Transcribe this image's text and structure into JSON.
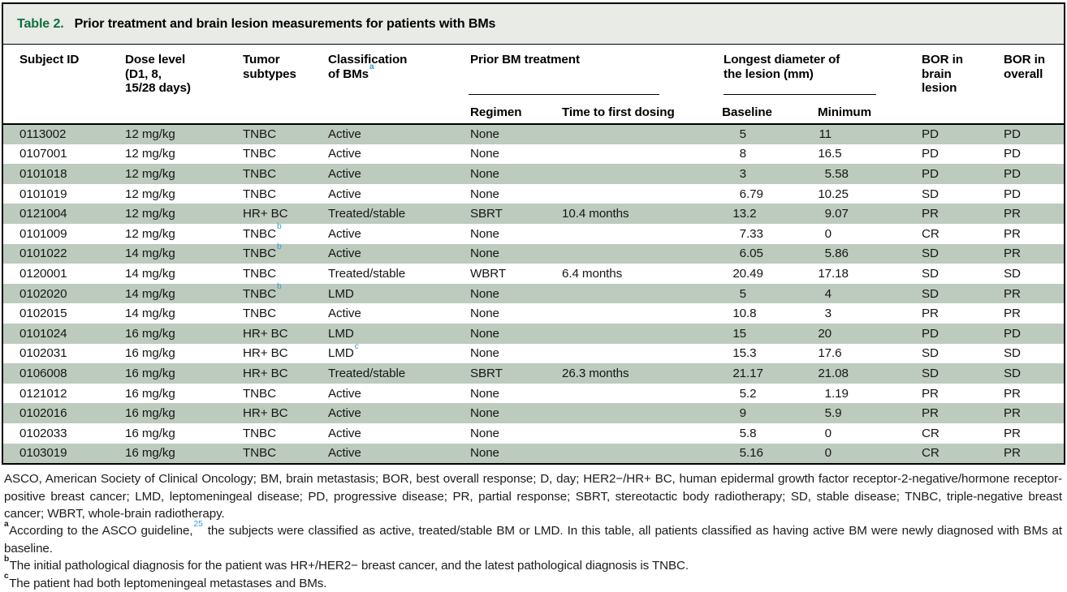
{
  "title": {
    "label": "Table 2.",
    "text": "Prior treatment and brain lesion measurements for patients with BMs"
  },
  "colors": {
    "accent_green": "#106f3e",
    "row_band_green": "#bdcabe",
    "title_bar_bg": "#e8ebe6",
    "superscript_blue": "#2e9fd6"
  },
  "header": {
    "subject_id": "Subject ID",
    "dose_level": "Dose level\n(D1, 8,\n15/28 days)",
    "tumor_subtypes": "Tumor\nsubtypes",
    "classification": "Classification\nof BMs",
    "classification_sup": "a",
    "prior_treatment_group": "Prior BM treatment",
    "regimen": "Regimen",
    "time_to_first_dosing": "Time to first dosing",
    "diameter_group": "Longest diameter of\nthe lesion (mm)",
    "baseline": "Baseline",
    "minimum": "Minimum",
    "bor_brain": "BOR in\nbrain\nlesion",
    "bor_overall": "BOR in\noverall"
  },
  "rows": [
    {
      "subject_id": "0113002",
      "dose": "12 mg/kg",
      "tumor": "TNBC",
      "tumor_sup": "",
      "classification": "Active",
      "classification_sup": "",
      "regimen": "None",
      "time_to_first_dosing": "",
      "baseline": "5",
      "minimum": "11",
      "bor_brain": "PD",
      "bor_overall": "PD"
    },
    {
      "subject_id": "0107001",
      "dose": "12 mg/kg",
      "tumor": "TNBC",
      "tumor_sup": "",
      "classification": "Active",
      "classification_sup": "",
      "regimen": "None",
      "time_to_first_dosing": "",
      "baseline": "8",
      "minimum": "16.5",
      "bor_brain": "PD",
      "bor_overall": "PD"
    },
    {
      "subject_id": "0101018",
      "dose": "12 mg/kg",
      "tumor": "TNBC",
      "tumor_sup": "",
      "classification": "Active",
      "classification_sup": "",
      "regimen": "None",
      "time_to_first_dosing": "",
      "baseline": "3",
      "minimum": "5.58",
      "bor_brain": "PD",
      "bor_overall": "PD"
    },
    {
      "subject_id": "0101019",
      "dose": "12 mg/kg",
      "tumor": "TNBC",
      "tumor_sup": "",
      "classification": "Active",
      "classification_sup": "",
      "regimen": "None",
      "time_to_first_dosing": "",
      "baseline": "6.79",
      "minimum": "10.25",
      "bor_brain": "SD",
      "bor_overall": "PD"
    },
    {
      "subject_id": "0121004",
      "dose": "12 mg/kg",
      "tumor": "HR+ BC",
      "tumor_sup": "",
      "classification": "Treated/stable",
      "classification_sup": "",
      "regimen": "SBRT",
      "time_to_first_dosing": "10.4 months",
      "baseline": "13.2",
      "minimum": "9.07",
      "bor_brain": "PR",
      "bor_overall": "PR"
    },
    {
      "subject_id": "0101009",
      "dose": "12 mg/kg",
      "tumor": "TNBC",
      "tumor_sup": "b",
      "classification": "Active",
      "classification_sup": "",
      "regimen": "None",
      "time_to_first_dosing": "",
      "baseline": "7.33",
      "minimum": "0",
      "bor_brain": "CR",
      "bor_overall": "PR"
    },
    {
      "subject_id": "0101022",
      "dose": "14 mg/kg",
      "tumor": "TNBC",
      "tumor_sup": "b",
      "classification": "Active",
      "classification_sup": "",
      "regimen": "None",
      "time_to_first_dosing": "",
      "baseline": "6.05",
      "minimum": "5.86",
      "bor_brain": "SD",
      "bor_overall": "PR"
    },
    {
      "subject_id": "0120001",
      "dose": "14 mg/kg",
      "tumor": "TNBC",
      "tumor_sup": "",
      "classification": "Treated/stable",
      "classification_sup": "",
      "regimen": "WBRT",
      "time_to_first_dosing": "6.4 months",
      "baseline": "20.49",
      "minimum": "17.18",
      "bor_brain": "SD",
      "bor_overall": "SD"
    },
    {
      "subject_id": "0102020",
      "dose": "14 mg/kg",
      "tumor": "TNBC",
      "tumor_sup": "b",
      "classification": "LMD",
      "classification_sup": "",
      "regimen": "None",
      "time_to_first_dosing": "",
      "baseline": "5",
      "minimum": "4",
      "bor_brain": "SD",
      "bor_overall": "PR"
    },
    {
      "subject_id": "0102015",
      "dose": "14 mg/kg",
      "tumor": "TNBC",
      "tumor_sup": "",
      "classification": "Active",
      "classification_sup": "",
      "regimen": "None",
      "time_to_first_dosing": "",
      "baseline": "10.8",
      "minimum": "3",
      "bor_brain": "PR",
      "bor_overall": "PR"
    },
    {
      "subject_id": "0101024",
      "dose": "16 mg/kg",
      "tumor": "HR+ BC",
      "tumor_sup": "",
      "classification": "LMD",
      "classification_sup": "",
      "regimen": "None",
      "time_to_first_dosing": "",
      "baseline": "15",
      "minimum": "20",
      "bor_brain": "PD",
      "bor_overall": "PD"
    },
    {
      "subject_id": "0102031",
      "dose": "16 mg/kg",
      "tumor": "HR+ BC",
      "tumor_sup": "",
      "classification": "LMD",
      "classification_sup": "c",
      "regimen": "None",
      "time_to_first_dosing": "",
      "baseline": "15.3",
      "minimum": "17.6",
      "bor_brain": "SD",
      "bor_overall": "SD"
    },
    {
      "subject_id": "0106008",
      "dose": "16 mg/kg",
      "tumor": "HR+ BC",
      "tumor_sup": "",
      "classification": "Treated/stable",
      "classification_sup": "",
      "regimen": "SBRT",
      "time_to_first_dosing": "26.3 months",
      "baseline": "21.17",
      "minimum": "21.08",
      "bor_brain": "SD",
      "bor_overall": "SD"
    },
    {
      "subject_id": "0121012",
      "dose": "16 mg/kg",
      "tumor": "TNBC",
      "tumor_sup": "",
      "classification": "Active",
      "classification_sup": "",
      "regimen": "None",
      "time_to_first_dosing": "",
      "baseline": "5.2",
      "minimum": "1.19",
      "bor_brain": "PR",
      "bor_overall": "PR"
    },
    {
      "subject_id": "0102016",
      "dose": "16 mg/kg",
      "tumor": "HR+ BC",
      "tumor_sup": "",
      "classification": "Active",
      "classification_sup": "",
      "regimen": "None",
      "time_to_first_dosing": "",
      "baseline": "9",
      "minimum": "5.9",
      "bor_brain": "PR",
      "bor_overall": "PR"
    },
    {
      "subject_id": "0102033",
      "dose": "16 mg/kg",
      "tumor": "TNBC",
      "tumor_sup": "",
      "classification": "Active",
      "classification_sup": "",
      "regimen": "None",
      "time_to_first_dosing": "",
      "baseline": "5.8",
      "minimum": "0",
      "bor_brain": "CR",
      "bor_overall": "PR"
    },
    {
      "subject_id": "0103019",
      "dose": "16 mg/kg",
      "tumor": "TNBC",
      "tumor_sup": "",
      "classification": "Active",
      "classification_sup": "",
      "regimen": "None",
      "time_to_first_dosing": "",
      "baseline": "5.16",
      "minimum": "0",
      "bor_brain": "CR",
      "bor_overall": "PR"
    }
  ],
  "footer": {
    "abbreviations": "ASCO, American Society of Clinical Oncology; BM, brain metastasis; BOR, best overall response; D, day; HER2−/HR+ BC, human epidermal growth factor receptor-2-negative/hormone receptor-positive breast cancer; LMD, leptomeningeal disease; PD, progressive disease; PR, partial response; SBRT, stereotactic body radiotherapy; SD, stable disease; TNBC, triple-negative breast cancer; WBRT, whole-brain radiotherapy.",
    "footnote_a": {
      "marker": "a",
      "pre": "According to the ASCO guideline,",
      "ref": "25",
      "post": " the subjects were classified as active, treated/stable BM or LMD. In this table, all patients classified as having active BM were newly diagnosed with BMs at baseline."
    },
    "footnote_b": {
      "marker": "b",
      "text": "The initial pathological diagnosis for the patient was HR+/HER2− breast cancer, and the latest pathological diagnosis is TNBC."
    },
    "footnote_c": {
      "marker": "c",
      "text": "The patient had both leptomeningeal metastases and BMs."
    }
  }
}
